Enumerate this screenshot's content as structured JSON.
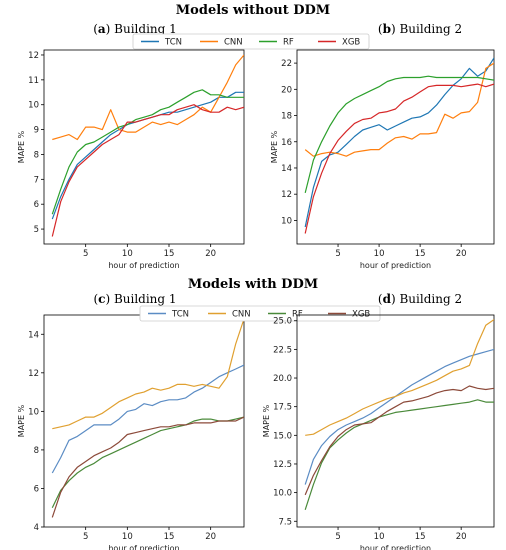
{
  "sections": [
    {
      "title": "Models without DDM"
    },
    {
      "title": "Models with DDM"
    }
  ],
  "legend": [
    "TCN",
    "CNN",
    "RF",
    "XGB"
  ],
  "colors": {
    "TCN": "#1f77b4",
    "CNN": "#ff7f0e",
    "RF": "#2ca02c",
    "XGB": "#d62728",
    "TCN2": "#5b8cc4",
    "CNN2": "#e0a030",
    "RF2": "#4a8a3a",
    "XGB2": "#8c4a3a"
  },
  "chart_data": [
    {
      "type": "line",
      "label": "a",
      "title": "Building 1",
      "xlabel": "hour of prediction",
      "ylabel": "MAPE %",
      "xlim": [
        0,
        24
      ],
      "ylim": [
        4.4,
        12.2
      ],
      "xticks": [
        5,
        10,
        15,
        20
      ],
      "yticks": [
        5,
        6,
        7,
        8,
        9,
        10,
        11,
        12
      ],
      "x": [
        1,
        2,
        3,
        4,
        5,
        6,
        7,
        8,
        9,
        10,
        11,
        12,
        13,
        14,
        15,
        16,
        17,
        18,
        19,
        20,
        21,
        22,
        23,
        24
      ],
      "series": [
        {
          "name": "TCN",
          "values": [
            5.4,
            6.3,
            7.0,
            7.6,
            7.9,
            8.2,
            8.5,
            8.8,
            9.0,
            9.2,
            9.3,
            9.4,
            9.5,
            9.6,
            9.7,
            9.7,
            9.8,
            9.9,
            10.0,
            10.1,
            10.3,
            10.3,
            10.5,
            10.5
          ]
        },
        {
          "name": "CNN",
          "values": [
            8.6,
            8.7,
            8.8,
            8.6,
            9.1,
            9.1,
            9.0,
            9.8,
            9.0,
            8.9,
            8.9,
            9.1,
            9.3,
            9.2,
            9.3,
            9.2,
            9.4,
            9.6,
            9.9,
            9.7,
            10.3,
            10.9,
            11.6,
            12.0
          ]
        },
        {
          "name": "RF",
          "values": [
            5.6,
            6.6,
            7.5,
            8.1,
            8.4,
            8.5,
            8.7,
            8.9,
            9.1,
            9.2,
            9.4,
            9.5,
            9.6,
            9.8,
            9.9,
            10.1,
            10.3,
            10.5,
            10.6,
            10.4,
            10.4,
            10.3,
            10.3,
            10.3
          ]
        },
        {
          "name": "XGB",
          "values": [
            4.7,
            6.1,
            6.9,
            7.5,
            7.8,
            8.1,
            8.4,
            8.6,
            8.8,
            9.3,
            9.3,
            9.4,
            9.5,
            9.6,
            9.6,
            9.8,
            9.9,
            10.0,
            9.8,
            9.7,
            9.7,
            9.9,
            9.8,
            9.9
          ]
        }
      ]
    },
    {
      "type": "line",
      "label": "b",
      "title": "Building 2",
      "xlabel": "hour of prediction",
      "ylabel": "MAPE %",
      "xlim": [
        0,
        24
      ],
      "ylim": [
        8.2,
        23.0
      ],
      "xticks": [
        5,
        10,
        15,
        20
      ],
      "yticks": [
        10,
        12,
        14,
        16,
        18,
        20,
        22
      ],
      "x": [
        1,
        2,
        3,
        4,
        5,
        6,
        7,
        8,
        9,
        10,
        11,
        12,
        13,
        14,
        15,
        16,
        17,
        18,
        19,
        20,
        21,
        22,
        23,
        24
      ],
      "series": [
        {
          "name": "TCN",
          "values": [
            9.5,
            12.5,
            14.5,
            15.0,
            15.2,
            15.8,
            16.4,
            16.9,
            17.1,
            17.3,
            16.9,
            17.2,
            17.5,
            17.8,
            17.9,
            18.2,
            18.8,
            19.6,
            20.3,
            20.8,
            21.6,
            21.0,
            21.4,
            22.4
          ]
        },
        {
          "name": "CNN",
          "values": [
            15.4,
            14.9,
            15.1,
            15.2,
            15.1,
            14.9,
            15.2,
            15.3,
            15.4,
            15.4,
            15.9,
            16.3,
            16.4,
            16.2,
            16.6,
            16.6,
            16.7,
            18.1,
            17.8,
            18.2,
            18.3,
            19.0,
            21.6,
            22.0
          ]
        },
        {
          "name": "RF",
          "values": [
            12.1,
            14.6,
            16.0,
            17.2,
            18.2,
            18.9,
            19.3,
            19.6,
            19.9,
            20.2,
            20.6,
            20.8,
            20.9,
            20.9,
            20.9,
            21.0,
            20.9,
            20.9,
            20.9,
            20.9,
            20.9,
            20.9,
            20.8,
            20.7
          ]
        },
        {
          "name": "XGB",
          "values": [
            9.0,
            11.8,
            13.6,
            15.1,
            16.1,
            16.8,
            17.4,
            17.7,
            17.8,
            18.2,
            18.3,
            18.5,
            19.1,
            19.4,
            19.8,
            20.2,
            20.3,
            20.3,
            20.3,
            20.2,
            20.3,
            20.4,
            20.2,
            20.4
          ]
        }
      ]
    },
    {
      "type": "line",
      "label": "c",
      "title": "Building 1",
      "xlabel": "hour of prediction",
      "ylabel": "MAPE %",
      "xlim": [
        0,
        24
      ],
      "ylim": [
        4.0,
        15.0
      ],
      "xticks": [
        5,
        10,
        15,
        20
      ],
      "yticks": [
        4,
        6,
        8,
        10,
        12,
        14
      ],
      "x": [
        1,
        2,
        3,
        4,
        5,
        6,
        7,
        8,
        9,
        10,
        11,
        12,
        13,
        14,
        15,
        16,
        17,
        18,
        19,
        20,
        21,
        22,
        23,
        24
      ],
      "series": [
        {
          "name": "TCN",
          "values": [
            6.8,
            7.6,
            8.5,
            8.7,
            9.0,
            9.3,
            9.3,
            9.3,
            9.6,
            10.0,
            10.1,
            10.4,
            10.3,
            10.5,
            10.6,
            10.6,
            10.7,
            11.0,
            11.2,
            11.5,
            11.8,
            12.0,
            12.2,
            12.4
          ]
        },
        {
          "name": "CNN",
          "values": [
            9.1,
            9.2,
            9.3,
            9.5,
            9.7,
            9.7,
            9.9,
            10.2,
            10.5,
            10.7,
            10.9,
            11.0,
            11.2,
            11.1,
            11.2,
            11.4,
            11.4,
            11.3,
            11.4,
            11.3,
            11.2,
            11.8,
            13.5,
            14.8
          ]
        },
        {
          "name": "RF",
          "values": [
            5.0,
            5.9,
            6.4,
            6.8,
            7.1,
            7.3,
            7.6,
            7.8,
            8.0,
            8.2,
            8.4,
            8.6,
            8.8,
            9.0,
            9.1,
            9.2,
            9.3,
            9.5,
            9.6,
            9.6,
            9.5,
            9.5,
            9.6,
            9.7
          ]
        },
        {
          "name": "XGB",
          "values": [
            4.5,
            5.8,
            6.6,
            7.1,
            7.4,
            7.7,
            7.9,
            8.1,
            8.4,
            8.8,
            8.9,
            9.0,
            9.1,
            9.2,
            9.2,
            9.3,
            9.3,
            9.4,
            9.4,
            9.4,
            9.5,
            9.5,
            9.5,
            9.7
          ]
        }
      ]
    },
    {
      "type": "line",
      "label": "d",
      "title": "Building 2",
      "xlabel": "hour of prediction",
      "ylabel": "MAPE %",
      "xlim": [
        0,
        24
      ],
      "ylim": [
        7.0,
        25.5
      ],
      "xticks": [
        5,
        10,
        15,
        20
      ],
      "yticks": [
        7.5,
        10.0,
        12.5,
        15.0,
        17.5,
        20.0,
        22.5,
        25.0
      ],
      "x": [
        1,
        2,
        3,
        4,
        5,
        6,
        7,
        8,
        9,
        10,
        11,
        12,
        13,
        14,
        15,
        16,
        17,
        18,
        19,
        20,
        21,
        22,
        23,
        24
      ],
      "series": [
        {
          "name": "TCN",
          "values": [
            10.7,
            12.9,
            14.1,
            14.9,
            15.5,
            15.9,
            16.2,
            16.5,
            16.9,
            17.4,
            17.9,
            18.4,
            18.9,
            19.4,
            19.8,
            20.2,
            20.6,
            21.0,
            21.3,
            21.6,
            21.9,
            22.1,
            22.3,
            22.5
          ]
        },
        {
          "name": "CNN",
          "values": [
            15.0,
            15.1,
            15.5,
            15.9,
            16.2,
            16.5,
            16.9,
            17.3,
            17.6,
            17.9,
            18.2,
            18.4,
            18.7,
            18.9,
            19.2,
            19.5,
            19.8,
            20.2,
            20.6,
            20.8,
            21.1,
            23.0,
            24.6,
            25.1
          ]
        },
        {
          "name": "RF",
          "values": [
            8.5,
            10.7,
            12.6,
            13.9,
            14.6,
            15.2,
            15.7,
            16.0,
            16.3,
            16.6,
            16.8,
            17.0,
            17.1,
            17.2,
            17.3,
            17.4,
            17.5,
            17.6,
            17.7,
            17.8,
            17.9,
            18.1,
            17.9,
            17.9
          ]
        },
        {
          "name": "XGB",
          "values": [
            9.8,
            11.5,
            12.8,
            14.0,
            14.9,
            15.5,
            15.9,
            16.0,
            16.1,
            16.6,
            17.1,
            17.5,
            17.9,
            18.0,
            18.2,
            18.4,
            18.7,
            18.9,
            19.0,
            18.9,
            19.3,
            19.1,
            19.0,
            19.1
          ]
        }
      ]
    }
  ]
}
